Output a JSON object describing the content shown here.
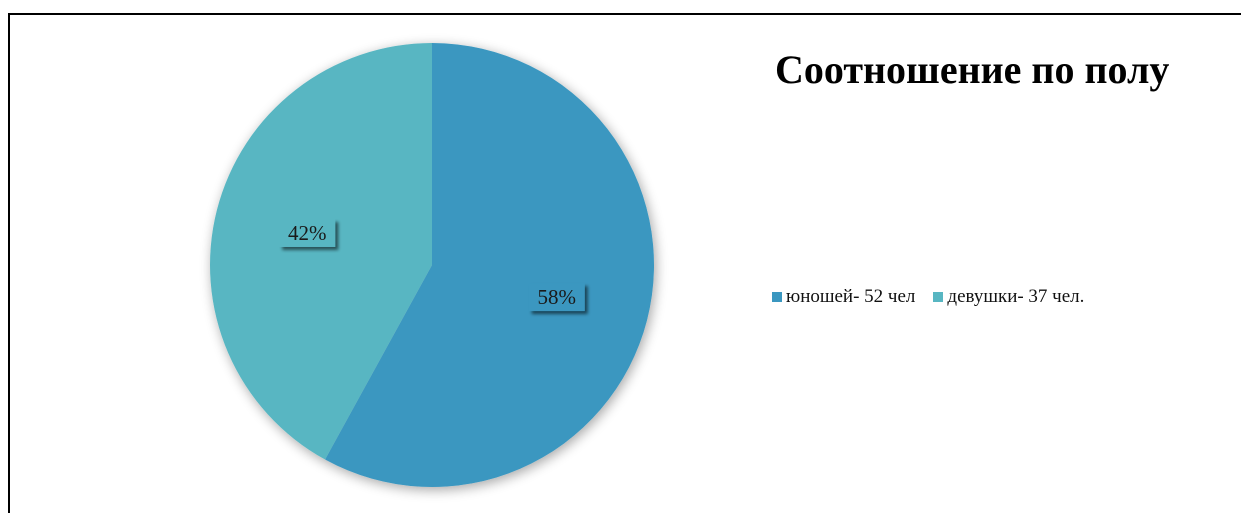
{
  "chart_data": {
    "type": "pie",
    "title": "Соотношение по полу",
    "categories": [
      "юношей- 52 чел",
      "девушки- 37 чел."
    ],
    "values": [
      58,
      42
    ],
    "data_labels": [
      "58%",
      "42%"
    ],
    "colors": [
      "#3a97c0",
      "#58b6c2"
    ],
    "legend_position": "right"
  }
}
